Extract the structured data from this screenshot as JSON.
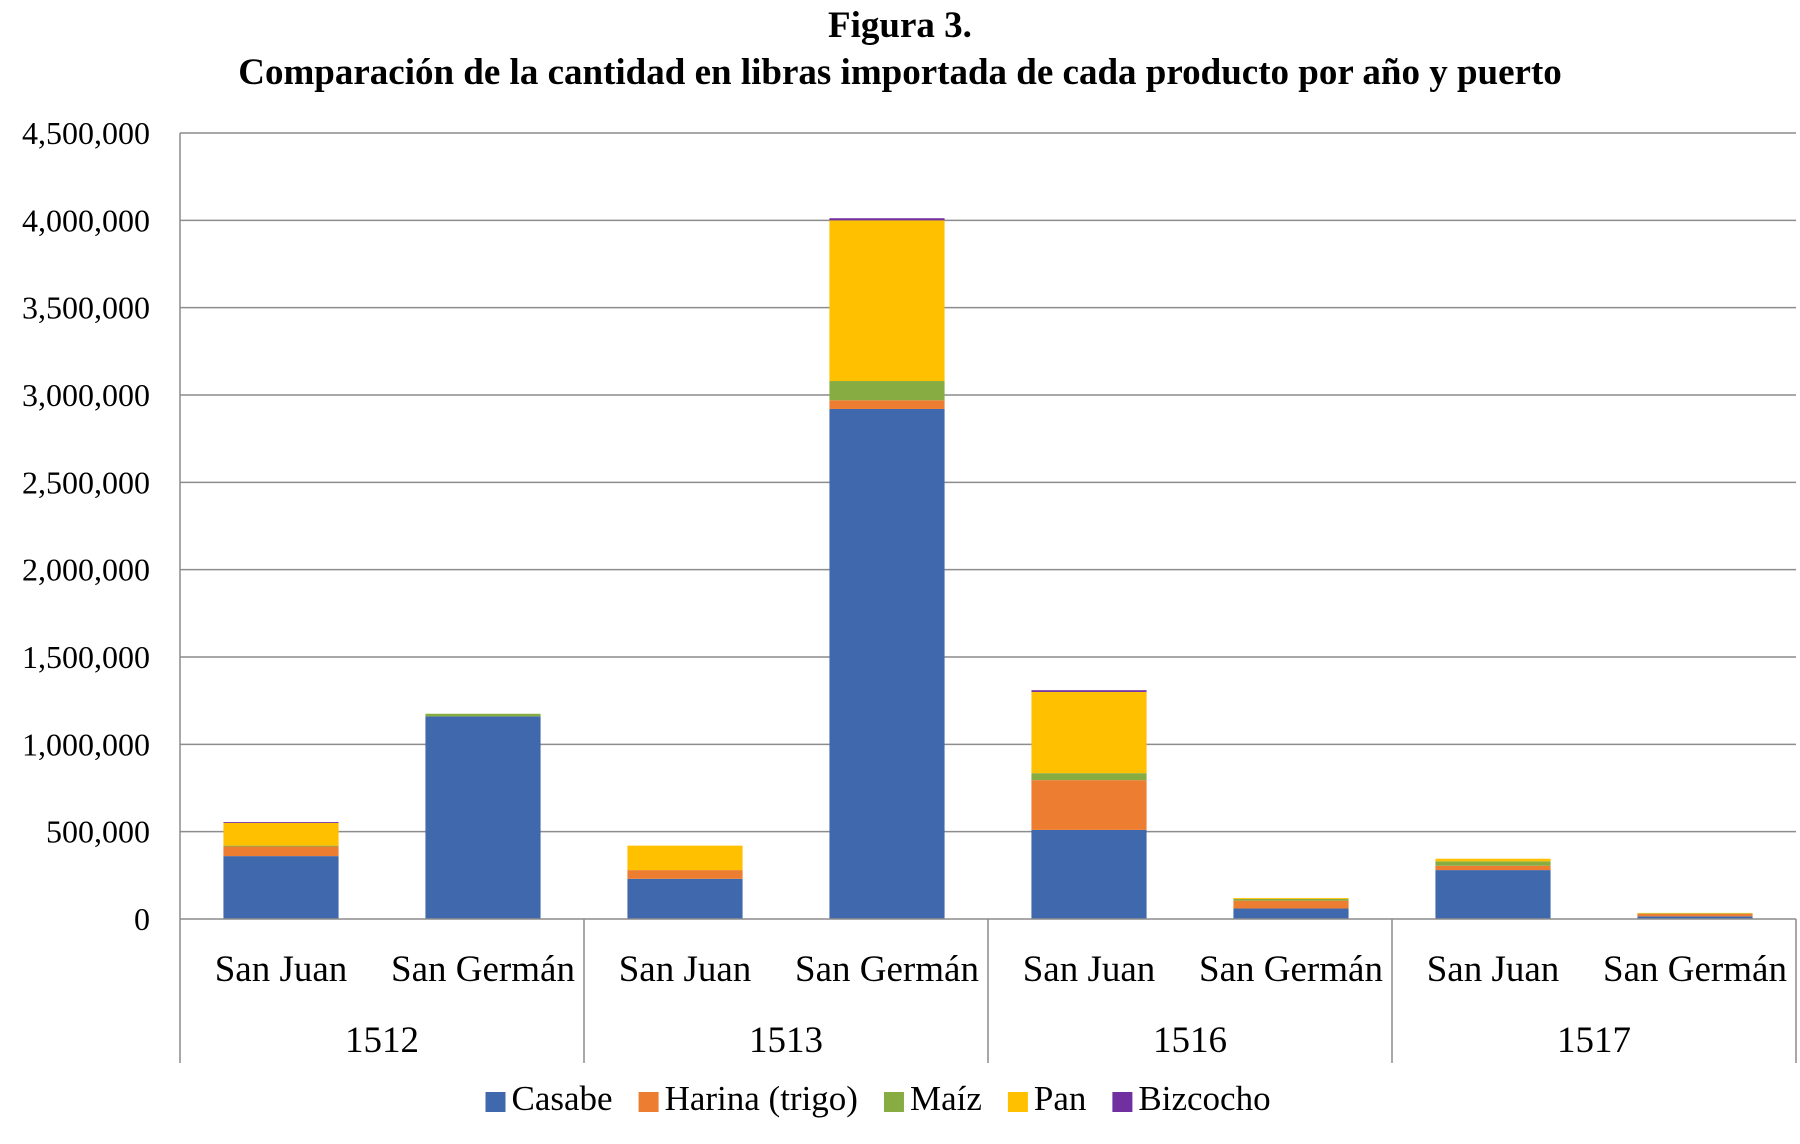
{
  "chart_data": {
    "type": "bar",
    "stacked": true,
    "title": "Figura 3.",
    "subtitle": "Comparación de la cantidad en libras importada de cada producto por año y puerto",
    "xlabel": "",
    "ylabel": "",
    "ylim": [
      0,
      4500000
    ],
    "yticks": [
      0,
      500000,
      1000000,
      1500000,
      2000000,
      2500000,
      3000000,
      3500000,
      4000000,
      4500000
    ],
    "ytick_labels": [
      "0",
      "500,000",
      "1,000,000",
      "1,500,000",
      "2,000,000",
      "2,500,000",
      "3,000,000",
      "3,500,000",
      "4,000,000",
      "4,500,000"
    ],
    "grid": true,
    "legend_position": "bottom",
    "groups": [
      {
        "label": "1512",
        "categories": [
          "San Juan",
          "San Germán"
        ]
      },
      {
        "label": "1513",
        "categories": [
          "San Juan",
          "San Germán"
        ]
      },
      {
        "label": "1516",
        "categories": [
          "San Juan",
          "San Germán"
        ]
      },
      {
        "label": "1517",
        "categories": [
          "San Juan",
          "San Germán"
        ]
      }
    ],
    "series": [
      {
        "name": "Casabe",
        "color": "#4069AD",
        "values": [
          360000,
          1160000,
          230000,
          2920000,
          510000,
          60000,
          280000,
          15000
        ]
      },
      {
        "name": "Harina (trigo)",
        "color": "#ED7D31",
        "values": [
          55000,
          0,
          50000,
          50000,
          285000,
          45000,
          25000,
          15000
        ]
      },
      {
        "name": "Maíz",
        "color": "#86AC42",
        "values": [
          5000,
          15000,
          0,
          110000,
          40000,
          10000,
          25000,
          3000
        ]
      },
      {
        "name": "Pan",
        "color": "#FFC000",
        "values": [
          130000,
          0,
          140000,
          920000,
          465000,
          5000,
          15000,
          2000
        ]
      },
      {
        "name": "Bizcocho",
        "color": "#7030A0",
        "values": [
          5000,
          0,
          0,
          12000,
          10000,
          0,
          0,
          0
        ]
      }
    ]
  }
}
